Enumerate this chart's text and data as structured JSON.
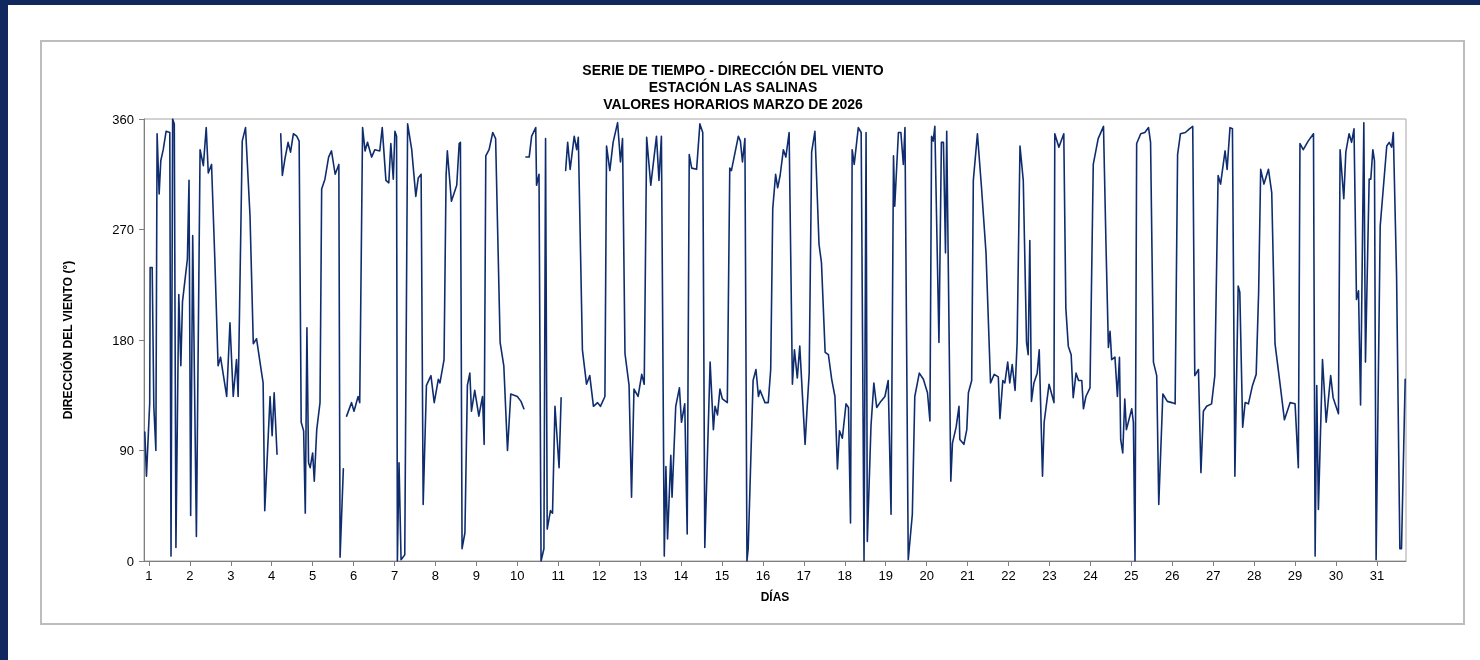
{
  "chart_data": {
    "type": "line",
    "title": "SERIE DE TIEMPO - DIRECCIÓN DEL VIENTO\nESTACIÓN LAS SALINAS\nVALORES HORARIOS MARZO DE 2026",
    "xlabel": "DÍAS",
    "ylabel": "DIRECCIÓN DEL VIENTO (°)",
    "xlim": [
      0.88,
      31.71
    ],
    "xticks": [
      1,
      2,
      3,
      4,
      5,
      6,
      7,
      8,
      9,
      10,
      11,
      12,
      13,
      14,
      15,
      16,
      17,
      18,
      19,
      20,
      21,
      22,
      23,
      24,
      25,
      26,
      27,
      28,
      29,
      30,
      31
    ],
    "ylim": [
      0,
      360
    ],
    "yticks": [
      0,
      90,
      180,
      270,
      360
    ],
    "grid": false,
    "marker": "none",
    "line_style": "solid",
    "series": [
      {
        "color": "#0f2d6e",
        "x": [
          0.9,
          0.94,
          1.02,
          1.03,
          1.08,
          1.12,
          1.17,
          1.2,
          1.25,
          1.29,
          1.35,
          1.42,
          1.51,
          1.54,
          1.58,
          1.62,
          1.66,
          1.73,
          1.78,
          1.82,
          1.94,
          1.98,
          2.02,
          2.07,
          2.16,
          2.25,
          2.33,
          2.4,
          2.45,
          2.53,
          2.61,
          2.69,
          2.75,
          2.9,
          2.98,
          3.06,
          3.14,
          3.18,
          3.28,
          3.36,
          3.47,
          3.55,
          3.63,
          3.74,
          3.79,
          3.83,
          3.96,
          4.01,
          4.06,
          4.13,
          4.18,
          4.22,
          4.26,
          4.32,
          4.4,
          4.46,
          4.53,
          4.61,
          4.67,
          4.72,
          4.78,
          4.82,
          4.86,
          4.9,
          4.94,
          5.0,
          5.04,
          5.1,
          5.18,
          5.22,
          5.3,
          5.39,
          5.46,
          5.55,
          5.64,
          5.67,
          5.75,
          5.79,
          5.83,
          5.95,
          6.01,
          6.11,
          6.15,
          6.22,
          6.28,
          6.34,
          6.44,
          6.52,
          6.64,
          6.7,
          6.79,
          6.86,
          6.91,
          6.97,
          7.01,
          7.05,
          7.07,
          7.11,
          7.16,
          7.25,
          7.32,
          7.42,
          7.52,
          7.58,
          7.65,
          7.7,
          7.78,
          7.89,
          7.97,
          8.07,
          8.11,
          8.21,
          8.26,
          8.29,
          8.39,
          8.52,
          8.58,
          8.61,
          8.65,
          8.72,
          8.78,
          8.84,
          8.88,
          8.96,
          9.06,
          9.15,
          9.19,
          9.23,
          9.31,
          9.4,
          9.47,
          9.58,
          9.67,
          9.76,
          9.84,
          10.0,
          10.09,
          10.16,
          10.19,
          10.21,
          10.29,
          10.35,
          10.45,
          10.47,
          10.53,
          10.58,
          10.65,
          10.69,
          10.73,
          10.81,
          10.86,
          10.92,
          11.02,
          11.07,
          11.12,
          11.18,
          11.23,
          11.29,
          11.39,
          11.45,
          11.49,
          11.59,
          11.69,
          11.77,
          11.86,
          11.96,
          12.03,
          12.14,
          12.18,
          12.26,
          12.34,
          12.45,
          12.52,
          12.57,
          12.63,
          12.73,
          12.79,
          12.85,
          12.95,
          13.04,
          13.1,
          13.16,
          13.26,
          13.4,
          13.46,
          13.52,
          13.59,
          13.63,
          13.67,
          13.75,
          13.78,
          13.87,
          13.96,
          14.01,
          14.09,
          14.15,
          14.2,
          14.26,
          14.38,
          14.46,
          14.53,
          14.58,
          14.71,
          14.79,
          14.83,
          14.89,
          14.95,
          15.01,
          15.13,
          15.19,
          15.23,
          15.4,
          15.45,
          15.5,
          15.56,
          15.61,
          15.64,
          15.76,
          15.83,
          15.89,
          15.93,
          16.05,
          16.13,
          16.19,
          16.24,
          16.31,
          16.36,
          16.42,
          16.5,
          16.56,
          16.64,
          16.72,
          16.77,
          16.84,
          16.9,
          17.03,
          17.08,
          17.13,
          17.19,
          17.27,
          17.37,
          17.43,
          17.52,
          17.6,
          17.68,
          17.76,
          17.82,
          17.87,
          17.94,
          18.03,
          18.09,
          18.14,
          18.18,
          18.23,
          18.33,
          18.4,
          18.47,
          18.52,
          18.55,
          18.64,
          18.71,
          18.78,
          18.88,
          18.98,
          19.06,
          19.13,
          19.19,
          19.22,
          19.31,
          19.37,
          19.43,
          19.47,
          19.55,
          19.65,
          19.71,
          19.82,
          19.92,
          20.02,
          20.08,
          20.12,
          20.16,
          20.2,
          20.3,
          20.36,
          20.41,
          20.46,
          20.49,
          20.59,
          20.63,
          20.72,
          20.79,
          20.81,
          20.91,
          20.98,
          21.02,
          21.1,
          21.14,
          21.24,
          21.34,
          21.45,
          21.56,
          21.65,
          21.75,
          21.79,
          21.86,
          21.91,
          21.98,
          22.03,
          22.09,
          22.16,
          22.21,
          22.28,
          22.36,
          22.44,
          22.48,
          22.52,
          22.56,
          22.62,
          22.7,
          22.75,
          22.83,
          22.87,
          22.99,
          23.11,
          23.13,
          23.23,
          23.35,
          23.4,
          23.46,
          23.53,
          23.58,
          23.65,
          23.71,
          23.79,
          23.83,
          23.89,
          23.99,
          24.07,
          24.19,
          24.32,
          24.38,
          24.44,
          24.48,
          24.52,
          24.6,
          24.66,
          24.71,
          24.74,
          24.79,
          24.84,
          24.88,
          25.01,
          25.05,
          25.09,
          25.13,
          25.23,
          25.33,
          25.42,
          25.47,
          25.54,
          25.62,
          25.67,
          25.77,
          25.88,
          25.99,
          26.07,
          26.13,
          26.2,
          26.32,
          26.42,
          26.5,
          26.55,
          26.64,
          26.7,
          26.76,
          26.84,
          26.96,
          27.04,
          27.12,
          27.18,
          27.29,
          27.34,
          27.41,
          27.47,
          27.53,
          27.61,
          27.65,
          27.72,
          27.78,
          27.86,
          27.96,
          28.05,
          28.11,
          28.16,
          28.24,
          28.35,
          28.43,
          28.51,
          28.63,
          28.74,
          28.88,
          29.0,
          29.08,
          29.12,
          29.2,
          29.32,
          29.45,
          29.49,
          29.53,
          29.57,
          29.67,
          29.76,
          29.87,
          29.93,
          30.06,
          30.1,
          30.19,
          30.24,
          30.32,
          30.38,
          30.44,
          30.5,
          30.55,
          30.6,
          30.68,
          30.72,
          30.81,
          30.85,
          30.9,
          30.94,
          30.98,
          31.08,
          31.24,
          31.3,
          31.36,
          31.4,
          31.48,
          31.56,
          31.6,
          31.69
        ],
        "values": [
          105,
          69,
          129,
          239,
          239,
          126,
          90,
          348,
          299,
          326,
          335,
          350,
          349,
          4,
          360,
          356,
          11,
          217,
          159,
          211,
          246,
          310,
          37,
          265,
          20,
          335,
          322,
          353,
          316,
          323,
          246,
          159,
          166,
          134,
          194,
          134,
          164,
          134,
          342,
          353,
          281,
          177,
          181,
          156,
          145,
          41,
          134,
          102,
          137,
          87,
          null,
          348,
          314,
          327,
          341,
          333,
          348,
          346,
          342,
          113,
          106,
          39,
          190,
          80,
          76,
          88,
          65,
          107,
          129,
          303,
          311,
          329,
          334,
          315,
          323,
          3,
          75,
          null,
          118,
          129,
          122,
          134,
          129,
          353,
          334,
          341,
          329,
          335,
          334,
          353,
          310,
          308,
          340,
          311,
          350,
          346,
          0,
          80,
          1,
          5,
          356,
          335,
          297,
          312,
          315,
          46,
          143,
          151,
          129,
          148,
          145,
          164,
          314,
          334,
          293,
          306,
          340,
          341,
          10,
          23,
          143,
          153,
          122,
          139,
          118,
          134,
          95,
          330,
          335,
          349,
          344,
          178,
          159,
          90,
          136,
          134,
          130,
          124,
          null,
          329,
          329,
          346,
          353,
          306,
          315,
          0,
          10,
          344,
          26,
          41,
          39,
          126,
          76,
          133,
          null,
          318,
          341,
          319,
          346,
          335,
          345,
          172,
          144,
          151,
          126,
          129,
          126,
          134,
          338,
          318,
          341,
          357,
          325,
          344,
          169,
          143,
          52,
          140,
          134,
          152,
          144,
          345,
          306,
          346,
          310,
          346,
          4,
          77,
          18,
          86,
          52,
          126,
          141,
          113,
          128,
          22,
          331,
          320,
          319,
          356,
          349,
          11,
          162,
          107,
          126,
          119,
          140,
          132,
          129,
          320,
          318,
          346,
          342,
          325,
          344,
          0,
          10,
          147,
          156,
          134,
          139,
          129,
          129,
          156,
          287,
          315,
          304,
          314,
          335,
          329,
          349,
          144,
          172,
          149,
          175,
          95,
          125,
          153,
          333,
          350,
          258,
          243,
          170,
          168,
          148,
          134,
          75,
          106,
          100,
          128,
          125,
          31,
          335,
          323,
          353,
          349,
          0,
          349,
          16,
          110,
          145,
          125,
          130,
          134,
          147,
          38,
          330,
          289,
          349,
          349,
          323,
          353,
          1,
          38,
          134,
          153,
          148,
          137,
          114,
          346,
          342,
          354,
          178,
          341,
          341,
          251,
          350,
          65,
          96,
          109,
          126,
          99,
          95,
          107,
          137,
          147,
          310,
          348,
          304,
          251,
          145,
          152,
          150,
          116,
          147,
          145,
          162,
          145,
          160,
          139,
          178,
          338,
          310,
          178,
          168,
          261,
          130,
          145,
          153,
          172,
          69,
          113,
          144,
          129,
          348,
          337,
          348,
          206,
          175,
          168,
          133,
          153,
          147,
          147,
          124,
          134,
          141,
          323,
          344,
          354,
          259,
          174,
          187,
          164,
          166,
          134,
          166,
          99,
          88,
          132,
          107,
          124,
          113,
          0,
          340,
          348,
          349,
          353,
          341,
          162,
          151,
          46,
          136,
          130,
          129,
          128,
          331,
          348,
          349,
          352,
          354,
          151,
          156,
          72,
          122,
          126,
          128,
          151,
          314,
          307,
          334,
          319,
          353,
          352,
          69,
          224,
          219,
          109,
          129,
          128,
          143,
          152,
          219,
          319,
          307,
          319,
          300,
          177,
          145,
          115,
          129,
          128,
          76,
          340,
          335,
          342,
          348,
          4,
          143,
          42,
          164,
          113,
          151,
          133,
          120,
          335,
          295,
          333,
          348,
          341,
          352,
          213,
          220,
          127,
          357,
          162,
          311,
          311,
          335,
          326,
          1,
          273,
          338,
          341,
          337,
          349,
          232,
          10,
          10,
          148
        ]
      }
    ]
  }
}
